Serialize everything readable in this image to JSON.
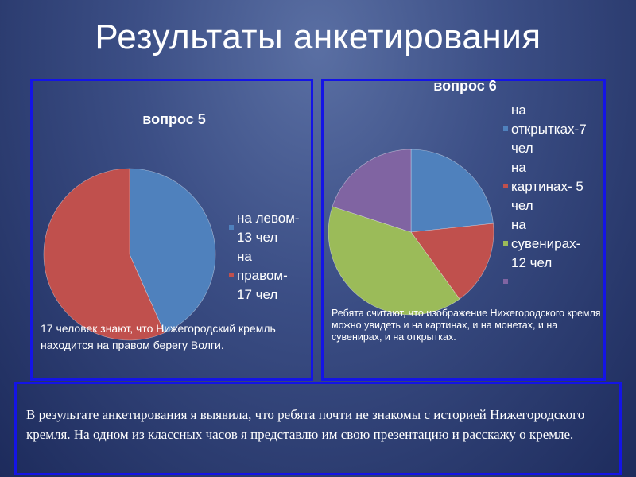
{
  "slide": {
    "title": "Результаты анкетирования"
  },
  "colors": {
    "background": "#2e3f78",
    "panel_border": "#1414e6",
    "blue": "#4f81bd",
    "red": "#c0504d",
    "green": "#9bbb59",
    "purple": "#8064a2"
  },
  "chart_data": [
    {
      "type": "pie",
      "title": "вопрос 5",
      "categories": [
        "на левом-13 чел",
        "на правом-17 чел"
      ],
      "values": [
        13,
        17
      ],
      "legend": [
        {
          "lines": [
            "на левом-",
            "13 чел"
          ],
          "color": "#4f81bd"
        },
        {
          "lines": [
            "на",
            "правом-",
            "17 чел"
          ],
          "color": "#c0504d"
        }
      ],
      "legend_position": "right"
    },
    {
      "type": "pie",
      "title": "вопрос 6",
      "categories": [
        "на открытках-7 чел",
        "на картинах- 5 чел",
        "на сувенирах-12 чел",
        ""
      ],
      "values": [
        7,
        5,
        12,
        6
      ],
      "legend": [
        {
          "lines": [
            "на",
            "открытках-7",
            "чел"
          ],
          "color": "#4f81bd"
        },
        {
          "lines": [
            "на",
            "картинах- 5",
            "чел"
          ],
          "color": "#c0504d"
        },
        {
          "lines": [
            "на",
            "сувенирах-",
            "12 чел"
          ],
          "color": "#9bbb59"
        },
        {
          "lines": [
            ""
          ],
          "color": "#8064a2"
        }
      ],
      "legend_position": "right"
    }
  ],
  "notes": {
    "q5": "17 человек знают, что Нижегородский кремль находится на правом берегу Волги.",
    "q6": "Ребята считают, что изображение Нижегородского кремля можно увидеть и на картинах, и на монетах, и на  сувенирах, и на открытках."
  },
  "conclusion": {
    "text": "В результате анкетирования  я выявила, что ребята почти не знакомы с историей Нижегородского кремля. На одном из классных часов  я представлю им свою презентацию и расскажу о кремле."
  }
}
